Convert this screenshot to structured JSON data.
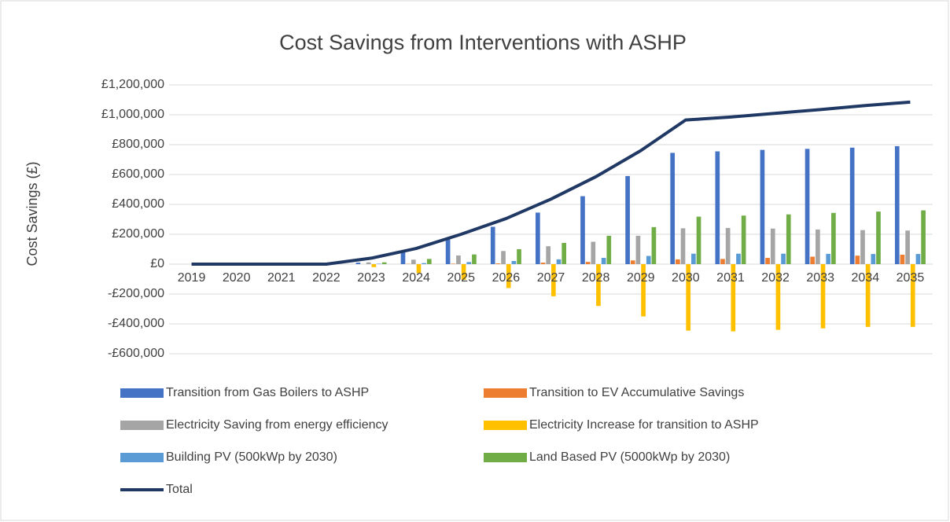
{
  "chart_data": {
    "type": "bar",
    "title": "Cost Savings from Interventions with ASHP",
    "y_label": "Cost Savings (£)",
    "categories": [
      "2019",
      "2020",
      "2021",
      "2022",
      "2023",
      "2024",
      "2025",
      "2026",
      "2027",
      "2028",
      "2029",
      "2030",
      "2031",
      "2032",
      "2033",
      "2034",
      "2035"
    ],
    "ylim": [
      -600000,
      1200000
    ],
    "yticks": [
      {
        "value": -600000,
        "label": "-£600,000"
      },
      {
        "value": -400000,
        "label": "-£400,000"
      },
      {
        "value": -200000,
        "label": "-£200,000"
      },
      {
        "value": 0,
        "label": "£0"
      },
      {
        "value": 200000,
        "label": "£200,000"
      },
      {
        "value": 400000,
        "label": "£400,000"
      },
      {
        "value": 600000,
        "label": "£600,000"
      },
      {
        "value": 800000,
        "label": "£800,000"
      },
      {
        "value": 1000000,
        "label": "£1,000,000"
      },
      {
        "value": 1200000,
        "label": "£1,200,000"
      }
    ],
    "grid": true,
    "legend": "bottom",
    "series": [
      {
        "name": "Transition from Gas Boilers to ASHP",
        "color": "#4472c4",
        "type": "bar",
        "values": [
          0,
          0,
          0,
          0,
          10000,
          80000,
          165000,
          250000,
          345000,
          455000,
          590000,
          745000,
          755000,
          765000,
          772000,
          780000,
          790000
        ]
      },
      {
        "name": "Transition to EV Accumulative Savings",
        "color": "#ed7d31",
        "type": "bar",
        "values": [
          0,
          0,
          0,
          0,
          0,
          2000,
          3000,
          5000,
          10000,
          15000,
          25000,
          32000,
          35000,
          42000,
          50000,
          57000,
          63000
        ]
      },
      {
        "name": "Electricity Saving from energy efficiency",
        "color": "#a5a5a5",
        "type": "bar",
        "values": [
          0,
          0,
          0,
          0,
          12000,
          30000,
          58000,
          88000,
          120000,
          150000,
          190000,
          240000,
          242000,
          238000,
          232000,
          228000,
          225000
        ]
      },
      {
        "name": "Electricity Increase for transition to ASHP",
        "color": "#ffc000",
        "type": "bar",
        "values": [
          0,
          0,
          0,
          0,
          -20000,
          -60000,
          -105000,
          -160000,
          -215000,
          -280000,
          -350000,
          -445000,
          -450000,
          -440000,
          -430000,
          -420000,
          -420000
        ]
      },
      {
        "name": "Building PV (500kWp by 2030)",
        "color": "#5b9bd5",
        "type": "bar",
        "values": [
          0,
          0,
          0,
          0,
          3000,
          7000,
          14000,
          21000,
          32000,
          42000,
          55000,
          70000,
          70000,
          70000,
          69000,
          68000,
          68000
        ]
      },
      {
        "name": "Land Based PV (5000kWp by 2030)",
        "color": "#70ad47",
        "type": "bar",
        "values": [
          0,
          0,
          0,
          0,
          12000,
          35000,
          65000,
          100000,
          142000,
          190000,
          248000,
          318000,
          325000,
          333000,
          343000,
          352000,
          360000
        ]
      },
      {
        "name": "Total",
        "color": "#203864",
        "type": "line",
        "values": [
          0,
          0,
          0,
          0,
          40000,
          105000,
          200000,
          305000,
          435000,
          585000,
          760000,
          965000,
          985000,
          1010000,
          1035000,
          1062000,
          1085000
        ]
      }
    ]
  }
}
